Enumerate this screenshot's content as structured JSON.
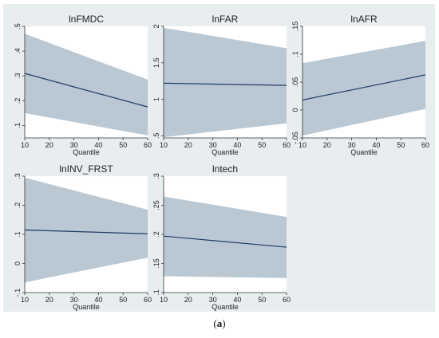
{
  "caption": {
    "open": "(",
    "letter": "a",
    "close": ")"
  },
  "colors": {
    "background": "#e8edf0",
    "band": "#b9c8d3",
    "line": "#1f3c63",
    "axis": "#333333",
    "plot_bg": "#ffffff"
  },
  "chart_data": [
    {
      "type": "line",
      "title": "lnFMDC",
      "xlabel": "Quantile",
      "ylabel": "",
      "xlim": [
        10,
        60
      ],
      "ylim": [
        0.05,
        0.5
      ],
      "xticks": [
        10,
        20,
        30,
        40,
        50,
        60
      ],
      "yticks": [
        0.1,
        0.2,
        0.3,
        0.4,
        0.5
      ],
      "ytick_labels": [
        ".1",
        ".2",
        ".3",
        ".4",
        ".5"
      ],
      "x": [
        10,
        60
      ],
      "estimate": [
        0.31,
        0.175
      ],
      "lower": [
        0.15,
        0.06
      ],
      "upper": [
        0.47,
        0.285
      ],
      "grid": false
    },
    {
      "type": "line",
      "title": "lnFAR",
      "xlabel": "Quantile",
      "ylabel": "",
      "xlim": [
        10,
        60
      ],
      "ylim": [
        0.47,
        2.0
      ],
      "xticks": [
        10,
        20,
        30,
        40,
        50,
        60
      ],
      "yticks": [
        0.5,
        1,
        1.5,
        2
      ],
      "ytick_labels": [
        ".5",
        "1",
        "1.5",
        "2"
      ],
      "x": [
        10,
        60
      ],
      "estimate": [
        1.22,
        1.19
      ],
      "lower": [
        0.48,
        0.67
      ],
      "upper": [
        1.98,
        1.7
      ],
      "grid": false
    },
    {
      "type": "line",
      "title": "lnAFR",
      "xlabel": "Quantile",
      "ylabel": "",
      "xlim": [
        10,
        60
      ],
      "ylim": [
        -0.05,
        0.15
      ],
      "xticks": [
        10,
        20,
        30,
        40,
        50,
        60
      ],
      "yticks": [
        -0.05,
        0,
        0.05,
        0.1,
        0.15
      ],
      "ytick_labels": [
        "-.05",
        "0",
        ".05",
        ".1",
        ".15"
      ],
      "x": [
        10,
        60
      ],
      "estimate": [
        0.018,
        0.063
      ],
      "lower": [
        -0.046,
        0.002
      ],
      "upper": [
        0.084,
        0.124
      ],
      "grid": false
    },
    {
      "type": "line",
      "title": "lnINV_FRST",
      "xlabel": "Quantile",
      "ylabel": "",
      "xlim": [
        10,
        60
      ],
      "ylim": [
        -0.1,
        0.3
      ],
      "xticks": [
        10,
        20,
        30,
        40,
        50,
        60
      ],
      "yticks": [
        -0.1,
        0,
        0.1,
        0.2,
        0.3
      ],
      "ytick_labels": [
        "-.1",
        "0",
        ".1",
        ".2",
        ".3"
      ],
      "x": [
        10,
        60
      ],
      "estimate": [
        0.115,
        0.102
      ],
      "lower": [
        -0.065,
        0.02
      ],
      "upper": [
        0.295,
        0.185
      ],
      "grid": false
    },
    {
      "type": "line",
      "title": "lntech",
      "xlabel": "Quantile",
      "ylabel": "",
      "xlim": [
        10,
        60
      ],
      "ylim": [
        0.1,
        0.3
      ],
      "xticks": [
        10,
        20,
        30,
        40,
        50,
        60
      ],
      "yticks": [
        0.1,
        0.15,
        0.2,
        0.25,
        0.3
      ],
      "ytick_labels": [
        ".1",
        ".15",
        ".2",
        ".25",
        ".3"
      ],
      "x": [
        10,
        60
      ],
      "estimate": [
        0.197,
        0.178
      ],
      "lower": [
        0.128,
        0.125
      ],
      "upper": [
        0.265,
        0.23
      ],
      "grid": false
    }
  ]
}
